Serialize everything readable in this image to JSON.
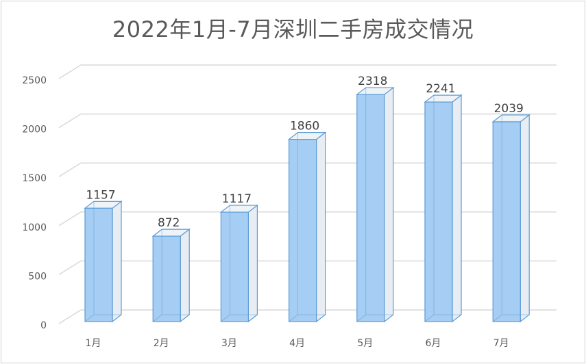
{
  "chart_data": {
    "type": "bar",
    "title": "2022年1月-7月深圳二手房成交情况",
    "categories": [
      "1月",
      "2月",
      "3月",
      "4月",
      "5月",
      "6月",
      "7月"
    ],
    "values": [
      1157,
      872,
      1117,
      1860,
      2318,
      2241,
      2039
    ],
    "ylim": [
      0,
      2500
    ],
    "yticks": [
      "0",
      "500",
      "1000",
      "1500",
      "2000",
      "2500"
    ],
    "grid": true,
    "legend": "none",
    "colors": {
      "front": "#a6cdf3",
      "side": "#e8edf3",
      "top": "#eef3f8",
      "edge": "#5b9bd5"
    }
  }
}
